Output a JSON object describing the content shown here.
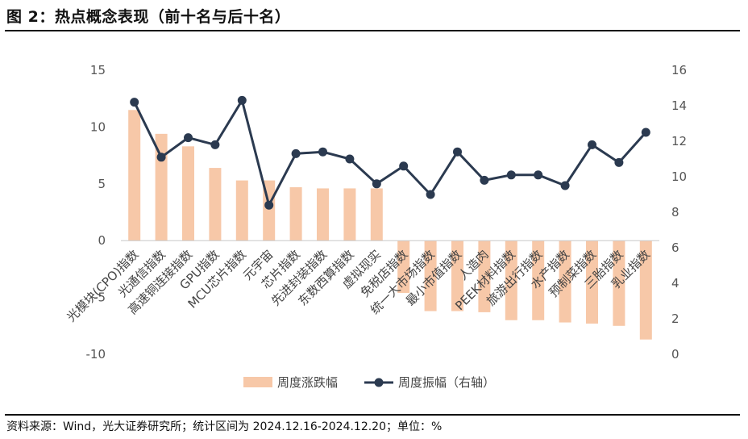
{
  "header": {
    "title": "图 2：热点概念表现（前十名与后十名）"
  },
  "footer": {
    "source": "资料来源：Wind，光大证券研究所；统计区间为 2024.12.16-2024.12.20；单位：%"
  },
  "chart_data": {
    "type": "bar",
    "categories": [
      "光模块(CPO)指数",
      "光通信指数",
      "高速铜连接指数",
      "GPU指数",
      "MCU芯片指数",
      "元宇宙",
      "芯片指数",
      "先进封装指数",
      "东数西算指数",
      "虚拟现实",
      "免税店指数",
      "统一大市场指数",
      "最小市值指数",
      "人造肉",
      "PEEK材料指数",
      "旅游出行指数",
      "水产指数",
      "预制菜指数",
      "三胎指数",
      "乳业指数"
    ],
    "series": [
      {
        "name": "周度涨跌幅",
        "type": "bar",
        "axis": "left",
        "color": "#f7c8a8",
        "values": [
          11.5,
          9.4,
          8.3,
          6.4,
          5.3,
          5.3,
          4.7,
          4.6,
          4.6,
          4.6,
          -4.6,
          -6.2,
          -6.2,
          -6.3,
          -7.0,
          -7.0,
          -7.2,
          -7.3,
          -7.5,
          -8.7
        ]
      },
      {
        "name": "周度振幅（右轴）",
        "type": "line",
        "axis": "right",
        "color": "#2b3a50",
        "values": [
          14.2,
          11.1,
          12.2,
          11.8,
          14.3,
          8.4,
          11.3,
          11.4,
          11.0,
          9.6,
          10.6,
          9.0,
          11.4,
          9.8,
          10.1,
          10.1,
          9.5,
          11.8,
          10.8,
          12.5
        ]
      }
    ],
    "left_axis": {
      "ylim": [
        -10,
        15
      ],
      "ticks": [
        "15",
        "10",
        "5",
        "0",
        "-5",
        "-10"
      ]
    },
    "right_axis": {
      "ylim": [
        0,
        16
      ],
      "ticks": [
        "16",
        "14",
        "12",
        "10",
        "8",
        "6",
        "4",
        "2",
        "0"
      ]
    },
    "legend": {
      "placement": "bottom",
      "items": [
        "周度涨跌幅",
        "周度振幅（右轴）"
      ]
    },
    "grid": false
  }
}
